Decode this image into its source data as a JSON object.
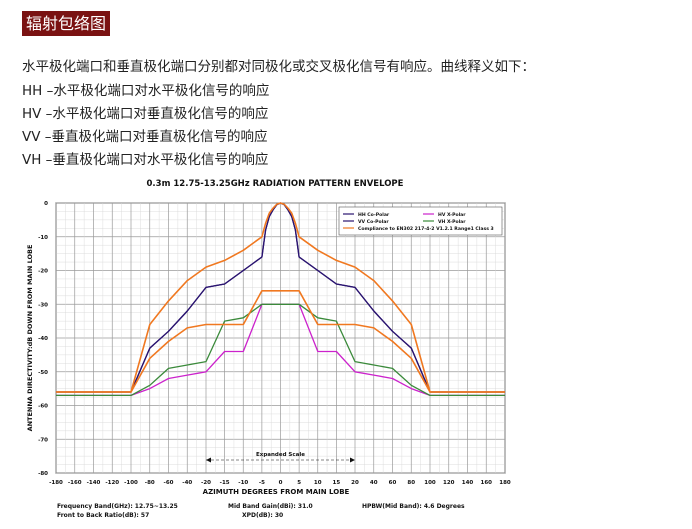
{
  "header": {
    "title": "辐射包络图"
  },
  "description": {
    "intro": "水平极化端口和垂直极化端口分别都对同极化或交叉极化信号有响应。曲线释义如下：",
    "lines": [
      "HH –水平极化端口对水平极化信号的响应",
      "HV –水平极化端口对垂直极化信号的响应",
      "VV –垂直极化端口对垂直极化信号的响应",
      "VH –垂直极化端口对水平极化信号的响应"
    ]
  },
  "chart_data": {
    "type": "line",
    "title": "0.3m 12.75-13.25GHz  RADIATION PATTERN ENVELOPE",
    "xlabel": "AZIMUTH DEGREES FROM MAIN LOBE",
    "ylabel": "ANTENNA DIRECTIVITY:dB DOWN FROM MAIN LOBE",
    "xlim": [
      -180,
      180
    ],
    "ylim": [
      -80,
      0
    ],
    "grid": true,
    "legend_position": "top-right",
    "expanded_scale": {
      "label": "Expanded Scale",
      "range": [
        -20,
        20
      ]
    },
    "x_ticks": [
      "-180",
      "-160",
      "-140",
      "-120",
      "-100",
      "-80",
      "-60",
      "-40",
      "-20",
      "-15",
      "-10",
      "-5",
      "0",
      "5",
      "10",
      "15",
      "20",
      "40",
      "60",
      "80",
      "100",
      "120",
      "140",
      "160",
      "180"
    ],
    "y_ticks": [
      "0",
      "-10",
      "-20",
      "-30",
      "-40",
      "-50",
      "-60",
      "-70",
      "-80"
    ],
    "series": [
      {
        "name": "HH Co-Polar",
        "color": "#2a1470",
        "x": [
          -180,
          -100,
          -80,
          -60,
          -40,
          -20,
          -15,
          -10,
          -5,
          -4,
          -3,
          -2,
          -1,
          0,
          1,
          2,
          3,
          4,
          5,
          10,
          15,
          20,
          40,
          60,
          80,
          100,
          180
        ],
        "y": [
          -56,
          -56,
          -43,
          -38,
          -32,
          -25,
          -24,
          -20,
          -16,
          -8,
          -4,
          -2,
          -0.5,
          0,
          -0.5,
          -2,
          -4,
          -8,
          -16,
          -20,
          -24,
          -25,
          -32,
          -38,
          -43,
          -56,
          -56
        ]
      },
      {
        "name": "HV X-Polar",
        "color": "#cc22cc",
        "x": [
          -180,
          -100,
          -80,
          -60,
          -40,
          -20,
          -15,
          -10,
          -5,
          5,
          10,
          15,
          20,
          40,
          60,
          80,
          100,
          180
        ],
        "y": [
          -57,
          -57,
          -55,
          -52,
          -51,
          -50,
          -44,
          -44,
          -30,
          -30,
          -44,
          -44,
          -50,
          -51,
          -52,
          -55,
          -57,
          -57
        ]
      },
      {
        "name": "VV Co-Polar",
        "color": "#2a1470",
        "x": [
          -180,
          -100,
          -80,
          -60,
          -40,
          -20,
          -15,
          -10,
          -5,
          -4,
          -3,
          -2,
          -1,
          0,
          1,
          2,
          3,
          4,
          5,
          10,
          15,
          20,
          40,
          60,
          80,
          100,
          180
        ],
        "y": [
          -56,
          -56,
          -43,
          -38,
          -32,
          -25,
          -24,
          -20,
          -16,
          -8,
          -4,
          -2,
          -0.5,
          0,
          -0.5,
          -2,
          -4,
          -8,
          -16,
          -20,
          -24,
          -25,
          -32,
          -38,
          -43,
          -56,
          -56
        ]
      },
      {
        "name": "VH X-Polar",
        "color": "#3a8a3a",
        "x": [
          -180,
          -100,
          -80,
          -60,
          -40,
          -20,
          -15,
          -10,
          -5,
          5,
          10,
          15,
          20,
          40,
          60,
          80,
          100,
          180
        ],
        "y": [
          -57,
          -57,
          -54,
          -49,
          -48,
          -47,
          -35,
          -34,
          -30,
          -30,
          -34,
          -35,
          -47,
          -48,
          -49,
          -54,
          -57,
          -57
        ]
      },
      {
        "name": "Compliance to EN302 217-4-2 V1.2.1 Range1 Class 3",
        "color": "#f07820",
        "x": [
          -180,
          -100,
          -80,
          -60,
          -40,
          -20,
          -15,
          -10,
          -5,
          -4,
          -3,
          -2,
          -1,
          0,
          1,
          2,
          3,
          4,
          5,
          10,
          15,
          20,
          40,
          60,
          80,
          100,
          180
        ],
        "y": [
          -56,
          -56,
          -36,
          -29,
          -23,
          -19,
          -17,
          -14,
          -10,
          -6,
          -3,
          -1.5,
          -0.4,
          0,
          -0.4,
          -1.5,
          -3,
          -6,
          -10,
          -14,
          -17,
          -19,
          -23,
          -29,
          -36,
          -56,
          -56
        ]
      },
      {
        "name": "Compliance to EN302 217-4-2 V1.2.1 Range1 Class 3",
        "color": "#f07820",
        "x": [
          -180,
          -100,
          -80,
          -60,
          -40,
          -20,
          -15,
          -10,
          -5,
          5,
          10,
          15,
          20,
          40,
          60,
          80,
          100,
          180
        ],
        "y": [
          -56,
          -56,
          -46,
          -41,
          -37,
          -36,
          -36,
          -36,
          -26,
          -26,
          -36,
          -36,
          -36,
          -37,
          -41,
          -46,
          -56,
          -56
        ]
      }
    ],
    "legend": [
      {
        "name": "HH Co-Polar",
        "color": "#2a1470"
      },
      {
        "name": "HV X-Polar",
        "color": "#cc22cc"
      },
      {
        "name": "VV Co-Polar",
        "color": "#2a1470"
      },
      {
        "name": "VH X-Polar",
        "color": "#3a8a3a"
      },
      {
        "name": "Compliance to EN302 217-4-2 V1.2.1 Range1 Class 3",
        "color": "#f07820"
      }
    ]
  },
  "footer": {
    "frequency_band": "Frequency Band(GHz): 12.75~13.25",
    "mid_band_gain": "Mid Band Gain(dBi): 31.0",
    "hpbw": "HPBW(Mid Band): 4.6 Degrees",
    "front_to_back": "Front to Back Ratio(dB): 57",
    "xpd": "XPD(dB): 30"
  }
}
